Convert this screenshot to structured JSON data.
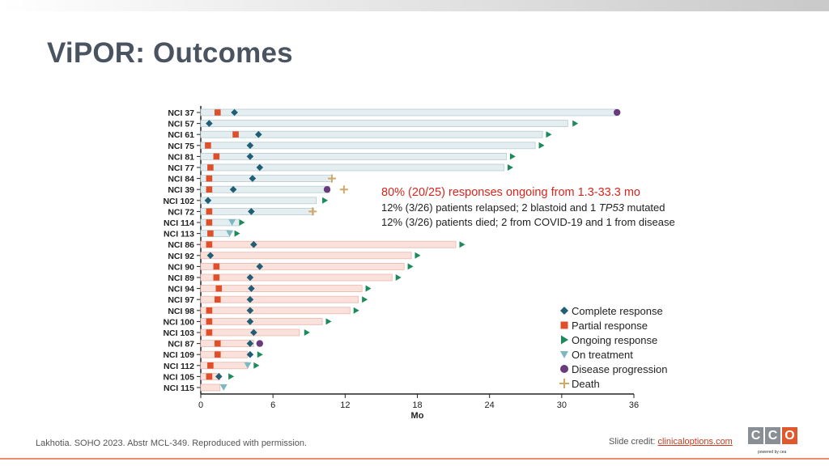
{
  "slide": {
    "title": "ViPOR: Outcomes",
    "footer_source": "Lakhotia. SOHO 2023. Abstr MCL-349. Reproduced with permission.",
    "credit_prefix": "Slide credit: ",
    "credit_link": "clinicaloptions.com",
    "logo_letters": [
      "C",
      "C",
      "O"
    ],
    "logo_sub": "powered by cea"
  },
  "annotation": {
    "line1": "80% (20/25) responses ongoing from 1.3-33.3 mo",
    "line2_a": "12% (3/26) patients relapsed; 2 blastoid and 1 ",
    "line2_gene": "TP53",
    "line2_b": " mutated",
    "line3": "12% (3/26) patients died; 2 from COVID-19 and 1 from disease"
  },
  "legend": [
    {
      "key": "CR",
      "label": "Complete response",
      "icon": "diamond",
      "color": "#1f5e74"
    },
    {
      "key": "PR",
      "label": "Partial response",
      "icon": "square",
      "color": "#e04f2a"
    },
    {
      "key": "ONG",
      "label": "Ongoing response",
      "icon": "arrow",
      "color": "#1c8a5a"
    },
    {
      "key": "TX",
      "label": "On treatment",
      "icon": "triangle-down",
      "color": "#7fb8c2"
    },
    {
      "key": "PD",
      "label": "Disease progression",
      "icon": "circle",
      "color": "#6a3b7c"
    },
    {
      "key": "D",
      "label": "Death",
      "icon": "plus",
      "color": "#d1a868"
    }
  ],
  "chart_data": {
    "type": "swimmer",
    "xlabel": "Mo",
    "xlim": [
      0,
      36
    ],
    "xticks": [
      0,
      6,
      12,
      18,
      24,
      30,
      36
    ],
    "colors": {
      "blue_bar_fill": "#e4eef1",
      "blue_bar_stroke": "#b6ccd3",
      "red_bar_fill": "#fbe1dc",
      "red_bar_stroke": "#eab7ad"
    },
    "patients": [
      {
        "id": "NCI 37",
        "bar": 34.5,
        "group": "blue",
        "pr": 1.4,
        "cr": 2.8,
        "pd": 34.6
      },
      {
        "id": "NCI 57",
        "bar": 30.5,
        "group": "blue",
        "cr": 0.7,
        "arrow": 31.1
      },
      {
        "id": "NCI 61",
        "bar": 28.4,
        "group": "blue",
        "pr": 2.9,
        "cr": 4.8,
        "arrow": 28.9
      },
      {
        "id": "NCI 75",
        "bar": 27.8,
        "group": "blue",
        "pr": 0.6,
        "cr": 4.1,
        "arrow": 28.3
      },
      {
        "id": "NCI 81",
        "bar": 25.4,
        "group": "blue",
        "pr": 1.3,
        "cr": 4.1,
        "arrow": 25.9
      },
      {
        "id": "NCI 77",
        "bar": 25.2,
        "group": "blue",
        "pr": 0.8,
        "cr": 4.9,
        "arrow": 25.7
      },
      {
        "id": "NCI 84",
        "bar": 10.9,
        "group": "blue",
        "pr": 0.7,
        "cr": 4.3,
        "death": 10.9
      },
      {
        "id": "NCI 39",
        "bar": 10.7,
        "group": "blue",
        "pr": 0.7,
        "cr": 2.7,
        "pd": 10.5,
        "death": 11.9
      },
      {
        "id": "NCI 102",
        "bar": 9.6,
        "group": "blue",
        "cr": 0.6,
        "arrow": 10.3
      },
      {
        "id": "NCI 72",
        "bar": 9.4,
        "group": "blue",
        "pr": 0.7,
        "cr": 4.2,
        "death": 9.3
      },
      {
        "id": "NCI 114",
        "bar": 3.2,
        "group": "blue",
        "pr": 0.7,
        "tx": 2.6,
        "arrow": 3.4
      },
      {
        "id": "NCI 113",
        "bar": 2.4,
        "group": "blue",
        "pr": 0.8,
        "tx": 2.4,
        "arrow": 3.0
      },
      {
        "id": "NCI 86",
        "bar": 21.2,
        "group": "red",
        "pr": 0.7,
        "cr": 4.4,
        "arrow": 21.7
      },
      {
        "id": "NCI 92",
        "bar": 17.5,
        "group": "red",
        "cr": 0.8,
        "arrow": 18.0
      },
      {
        "id": "NCI 90",
        "bar": 16.9,
        "group": "red",
        "pr": 1.3,
        "cr": 4.9,
        "arrow": 17.4
      },
      {
        "id": "NCI 89",
        "bar": 15.9,
        "group": "red",
        "pr": 1.3,
        "cr": 4.1,
        "arrow": 16.4
      },
      {
        "id": "NCI 94",
        "bar": 13.4,
        "group": "red",
        "pr": 1.5,
        "cr": 4.2,
        "arrow": 13.9
      },
      {
        "id": "NCI 97",
        "bar": 13.1,
        "group": "red",
        "pr": 1.4,
        "cr": 4.1,
        "arrow": 13.6
      },
      {
        "id": "NCI 98",
        "bar": 12.4,
        "group": "red",
        "pr": 0.7,
        "cr": 4.1,
        "arrow": 12.9
      },
      {
        "id": "NCI 100",
        "bar": 10.1,
        "group": "red",
        "pr": 0.7,
        "cr": 4.1,
        "arrow": 10.6
      },
      {
        "id": "NCI 103",
        "bar": 8.2,
        "group": "red",
        "pr": 0.7,
        "cr": 4.4,
        "arrow": 8.8
      },
      {
        "id": "NCI 87",
        "bar": 4.4,
        "group": "red",
        "pr": 1.4,
        "cr": 4.1,
        "pd": 4.9
      },
      {
        "id": "NCI 109",
        "bar": 3.9,
        "group": "red",
        "pr": 1.4,
        "cr": 4.1,
        "arrow": 4.9
      },
      {
        "id": "NCI 112",
        "bar": 3.9,
        "group": "red",
        "pr": 0.8,
        "tx": 3.9,
        "arrow": 4.6
      },
      {
        "id": "NCI 105",
        "bar": 1.6,
        "group": "red",
        "pr": 0.7,
        "cr": 1.5,
        "arrow": 2.5
      },
      {
        "id": "NCI 115",
        "bar": 1.6,
        "group": "red",
        "tx": 1.9
      }
    ]
  }
}
